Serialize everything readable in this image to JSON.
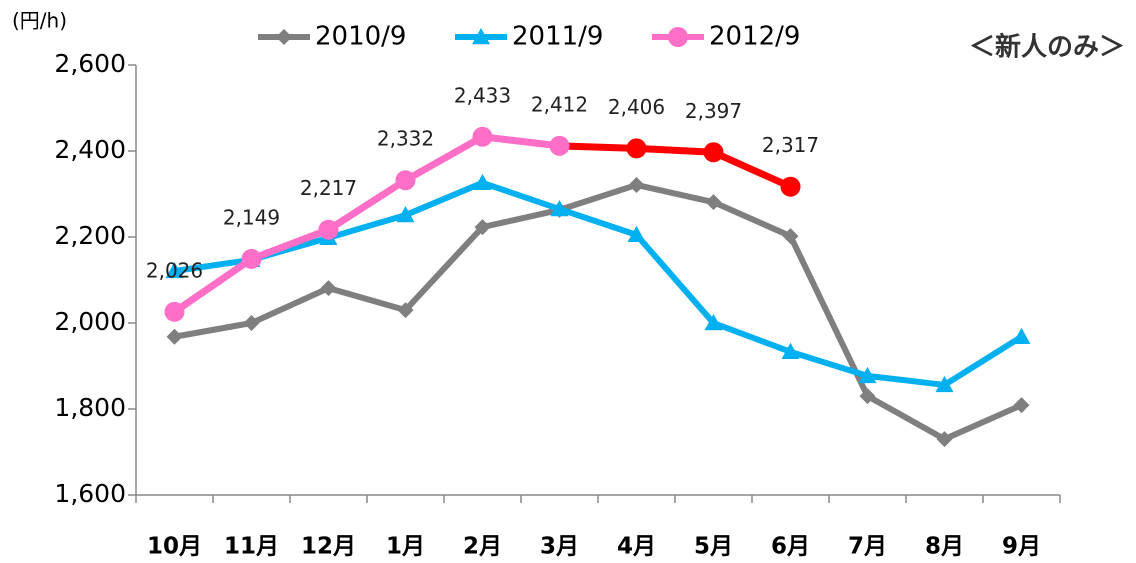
{
  "chart_data": {
    "type": "line",
    "y_label": "(円/h)",
    "annotation": "＜新人のみ＞",
    "categories": [
      "10月",
      "11月",
      "12月",
      "1月",
      "2月",
      "3月",
      "4月",
      "5月",
      "6月",
      "7月",
      "8月",
      "9月"
    ],
    "ylim": [
      1600,
      2600
    ],
    "yticks": [
      {
        "value": 1600,
        "label": "1,600"
      },
      {
        "value": 1800,
        "label": "1,800"
      },
      {
        "value": 2000,
        "label": "2,000"
      },
      {
        "value": 2200,
        "label": "2,200"
      },
      {
        "value": 2400,
        "label": "2,400"
      },
      {
        "value": 2600,
        "label": "2,600"
      }
    ],
    "legend": "top",
    "series": [
      {
        "name": "2010/9",
        "color": "#7f7f7f",
        "marker": "diamond",
        "values": [
          1968,
          2000,
          2081,
          2030,
          2223,
          2263,
          2321,
          2281,
          2202,
          1830,
          1730,
          1809
        ]
      },
      {
        "name": "2011/9",
        "color": "#00b0f0",
        "marker": "triangle",
        "values": [
          2121,
          2147,
          2198,
          2251,
          2326,
          2265,
          2205,
          2000,
          1933,
          1877,
          1856,
          1968
        ]
      },
      {
        "name": "2012/9",
        "color": "#ff6ec7",
        "marker": "circle",
        "values": [
          2026,
          2149,
          2217,
          2332,
          2433,
          2412,
          2406,
          2397,
          2317,
          null,
          null,
          null
        ],
        "value_labels": [
          "2,026",
          "2,149",
          "2,217",
          "2,332",
          "2,433",
          "2,412",
          "2,406",
          "2,397",
          "2,317",
          null,
          null,
          null
        ],
        "point_colors": [
          "#ff6ec7",
          "#ff6ec7",
          "#ff6ec7",
          "#ff6ec7",
          "#ff6ec7",
          "#ff6ec7",
          "#ff0000",
          "#ff0000",
          "#ff0000",
          null,
          null,
          null
        ]
      }
    ]
  }
}
